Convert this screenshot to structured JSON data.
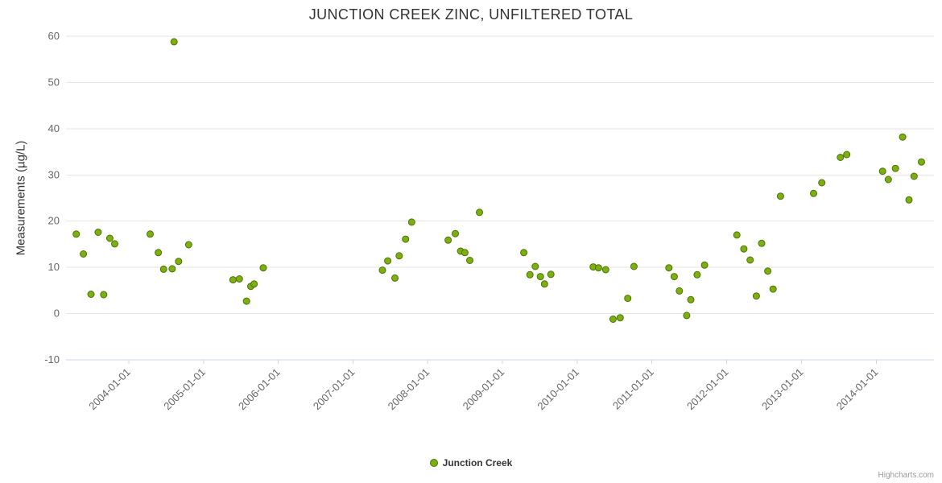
{
  "chart_data": {
    "type": "scatter",
    "title": "JUNCTION CREEK ZINC, UNFILTERED TOTAL",
    "xlabel": "",
    "ylabel": "Measurements (µg/L)",
    "ylim": [
      -10,
      60
    ],
    "y_ticks": [
      60,
      50,
      40,
      30,
      20,
      10,
      0,
      -10
    ],
    "x_range": [
      "2003-03-01",
      "2014-10-10"
    ],
    "x_ticks": [
      "2004-01-01",
      "2005-01-01",
      "2006-01-01",
      "2007-01-01",
      "2008-01-01",
      "2009-01-01",
      "2010-01-01",
      "2011-01-01",
      "2012-01-01",
      "2013-01-01",
      "2014-01-01"
    ],
    "grid": "horizontal",
    "legend_position": "bottom-center",
    "credits": "Highcharts.com",
    "colors": {
      "point_fill": "#7cb012",
      "point_stroke": "#4d7300",
      "grid": "#e6e6e6",
      "axis_line": "#ccd6eb",
      "title_text": "#333333",
      "axis_label": "#666666",
      "legend_text": "#333333",
      "credits_text": "#999999"
    },
    "marker_radius": 4,
    "series": [
      {
        "name": "Junction Creek",
        "points": [
          [
            "2003-04-20",
            17.2
          ],
          [
            "2003-05-25",
            12.9
          ],
          [
            "2003-07-01",
            4.2
          ],
          [
            "2003-08-05",
            17.6
          ],
          [
            "2003-09-01",
            4.1
          ],
          [
            "2003-10-01",
            16.3
          ],
          [
            "2003-10-25",
            15.1
          ],
          [
            "2004-04-15",
            17.2
          ],
          [
            "2004-05-25",
            13.2
          ],
          [
            "2004-06-20",
            9.6
          ],
          [
            "2004-08-01",
            9.7
          ],
          [
            "2004-08-10",
            58.8
          ],
          [
            "2004-09-01",
            11.3
          ],
          [
            "2004-10-20",
            14.9
          ],
          [
            "2005-05-25",
            7.3
          ],
          [
            "2005-06-25",
            7.5
          ],
          [
            "2005-07-30",
            2.7
          ],
          [
            "2005-08-20",
            5.9
          ],
          [
            "2005-09-05",
            6.4
          ],
          [
            "2005-10-20",
            9.9
          ],
          [
            "2007-05-25",
            9.4
          ],
          [
            "2007-06-20",
            11.4
          ],
          [
            "2007-07-25",
            7.7
          ],
          [
            "2007-08-15",
            12.5
          ],
          [
            "2007-09-15",
            16.1
          ],
          [
            "2007-10-15",
            19.8
          ],
          [
            "2008-04-10",
            15.9
          ],
          [
            "2008-05-15",
            17.3
          ],
          [
            "2008-06-10",
            13.5
          ],
          [
            "2008-07-01",
            13.2
          ],
          [
            "2008-07-25",
            11.5
          ],
          [
            "2008-09-10",
            21.9
          ],
          [
            "2009-04-15",
            13.2
          ],
          [
            "2009-05-15",
            8.4
          ],
          [
            "2009-06-10",
            10.2
          ],
          [
            "2009-07-05",
            8.0
          ],
          [
            "2009-07-25",
            6.4
          ],
          [
            "2009-08-25",
            8.5
          ],
          [
            "2010-03-20",
            10.1
          ],
          [
            "2010-04-15",
            9.9
          ],
          [
            "2010-05-20",
            9.5
          ],
          [
            "2010-06-25",
            -1.2
          ],
          [
            "2010-07-30",
            -0.9
          ],
          [
            "2010-09-05",
            3.3
          ],
          [
            "2010-10-05",
            10.2
          ],
          [
            "2011-03-25",
            9.9
          ],
          [
            "2011-04-20",
            8.0
          ],
          [
            "2011-05-15",
            4.9
          ],
          [
            "2011-06-20",
            -0.4
          ],
          [
            "2011-07-10",
            3.0
          ],
          [
            "2011-08-10",
            8.4
          ],
          [
            "2011-09-15",
            10.5
          ],
          [
            "2012-02-20",
            17.0
          ],
          [
            "2012-03-25",
            14.0
          ],
          [
            "2012-04-25",
            11.6
          ],
          [
            "2012-05-25",
            3.8
          ],
          [
            "2012-06-20",
            15.2
          ],
          [
            "2012-07-20",
            9.2
          ],
          [
            "2012-08-15",
            5.3
          ],
          [
            "2012-09-20",
            25.4
          ],
          [
            "2013-03-01",
            26.0
          ],
          [
            "2013-04-10",
            28.3
          ],
          [
            "2013-07-10",
            33.8
          ],
          [
            "2013-08-10",
            34.4
          ],
          [
            "2014-02-01",
            30.8
          ],
          [
            "2014-03-01",
            29.0
          ],
          [
            "2014-04-05",
            31.4
          ],
          [
            "2014-05-10",
            38.2
          ],
          [
            "2014-06-10",
            24.6
          ],
          [
            "2014-07-05",
            29.7
          ],
          [
            "2014-08-10",
            32.8
          ]
        ]
      }
    ]
  }
}
